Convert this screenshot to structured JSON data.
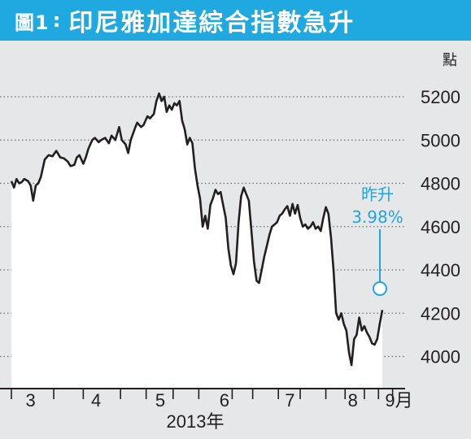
{
  "header": {
    "figure_label": "圖1",
    "colon": ":",
    "title": "印尼雅加達綜合指數急升"
  },
  "colors": {
    "header_bg": "#20a9e1",
    "plot_bg": "#e6e7e8",
    "area_fill": "#ffffff",
    "line": "#231f20",
    "annotation": "#1fa6de"
  },
  "chart_data": {
    "type": "line",
    "title": "印尼雅加達綜合指數急升",
    "ylabel": "點",
    "xlabel": "2013年",
    "ylim": [
      3920,
      5340
    ],
    "xlim": [
      0,
      33
    ],
    "y_ticks": [
      4000,
      4200,
      4400,
      4600,
      4800,
      5000,
      5200
    ],
    "x_tick_labels": [
      {
        "pos": 1.5,
        "label": "3"
      },
      {
        "pos": 6.6,
        "label": "4"
      },
      {
        "pos": 11.6,
        "label": "5"
      },
      {
        "pos": 16.6,
        "label": "6"
      },
      {
        "pos": 21.7,
        "label": "7"
      },
      {
        "pos": 26.6,
        "label": "8"
      },
      {
        "pos": 30.2,
        "label": "9月"
      }
    ],
    "x_minor_ticks": [
      0,
      3.3,
      5.6,
      8.5,
      10.5,
      12.6,
      14.6,
      17.2,
      18.8,
      20.8,
      22.5,
      24.5,
      26,
      27.5,
      28.6,
      29.7
    ],
    "year_label": "2013年",
    "grid": "horizontal-dotted",
    "series": [
      {
        "values": [
          [
            0.0,
            4810
          ],
          [
            0.2,
            4780
          ],
          [
            0.4,
            4820
          ],
          [
            0.6,
            4800
          ],
          [
            0.8,
            4805
          ],
          [
            1.0,
            4820
          ],
          [
            1.3,
            4810
          ],
          [
            1.5,
            4790
          ],
          [
            1.7,
            4720
          ],
          [
            1.9,
            4790
          ],
          [
            2.1,
            4800
          ],
          [
            2.3,
            4830
          ],
          [
            2.6,
            4910
          ],
          [
            2.9,
            4930
          ],
          [
            3.2,
            4925
          ],
          [
            3.5,
            4950
          ],
          [
            3.8,
            4920
          ],
          [
            4.1,
            4915
          ],
          [
            4.4,
            4900
          ],
          [
            4.6,
            4880
          ],
          [
            4.9,
            4885
          ],
          [
            5.1,
            4920
          ],
          [
            5.3,
            4930
          ],
          [
            5.6,
            4890
          ],
          [
            5.8,
            4920
          ],
          [
            6.0,
            4960
          ],
          [
            6.3,
            5000
          ],
          [
            6.5,
            5010
          ],
          [
            6.8,
            4990
          ],
          [
            7.0,
            5000
          ],
          [
            7.3,
            5010
          ],
          [
            7.6,
            4985
          ],
          [
            7.8,
            5020
          ],
          [
            8.1,
            5000
          ],
          [
            8.4,
            5060
          ],
          [
            8.6,
            5000
          ],
          [
            8.9,
            4980
          ],
          [
            9.1,
            4940
          ],
          [
            9.3,
            5000
          ],
          [
            9.6,
            5050
          ],
          [
            9.8,
            5080
          ],
          [
            10.1,
            5060
          ],
          [
            10.3,
            5070
          ],
          [
            10.6,
            5110
          ],
          [
            10.8,
            5100
          ],
          [
            11.1,
            5120
          ],
          [
            11.3,
            5180
          ],
          [
            11.5,
            5215
          ],
          [
            11.7,
            5180
          ],
          [
            11.9,
            5200
          ],
          [
            12.1,
            5130
          ],
          [
            12.3,
            5160
          ],
          [
            12.5,
            5140
          ],
          [
            12.7,
            5170
          ],
          [
            12.9,
            5160
          ],
          [
            13.1,
            5180
          ],
          [
            13.3,
            5090
          ],
          [
            13.5,
            5050
          ],
          [
            13.7,
            4980
          ],
          [
            13.9,
            5010
          ],
          [
            14.1,
            4985
          ],
          [
            14.3,
            4870
          ],
          [
            14.5,
            4790
          ],
          [
            14.7,
            4730
          ],
          [
            14.9,
            4600
          ],
          [
            15.1,
            4650
          ],
          [
            15.3,
            4590
          ],
          [
            15.5,
            4700
          ],
          [
            15.7,
            4730
          ],
          [
            15.9,
            4770
          ],
          [
            16.1,
            4750
          ],
          [
            16.3,
            4760
          ],
          [
            16.5,
            4700
          ],
          [
            16.7,
            4640
          ],
          [
            16.9,
            4500
          ],
          [
            17.1,
            4420
          ],
          [
            17.3,
            4380
          ],
          [
            17.5,
            4430
          ],
          [
            17.7,
            4620
          ],
          [
            17.9,
            4740
          ],
          [
            18.1,
            4780
          ],
          [
            18.3,
            4750
          ],
          [
            18.5,
            4720
          ],
          [
            18.7,
            4580
          ],
          [
            18.9,
            4440
          ],
          [
            19.1,
            4350
          ],
          [
            19.3,
            4340
          ],
          [
            19.5,
            4400
          ],
          [
            19.7,
            4460
          ],
          [
            19.9,
            4510
          ],
          [
            20.1,
            4560
          ],
          [
            20.3,
            4600
          ],
          [
            20.5,
            4610
          ],
          [
            20.7,
            4620
          ],
          [
            20.9,
            4650
          ],
          [
            21.1,
            4660
          ],
          [
            21.3,
            4680
          ],
          [
            21.5,
            4695
          ],
          [
            21.7,
            4650
          ],
          [
            21.9,
            4705
          ],
          [
            22.1,
            4660
          ],
          [
            22.3,
            4700
          ],
          [
            22.5,
            4640
          ],
          [
            22.7,
            4600
          ],
          [
            22.9,
            4610
          ],
          [
            23.1,
            4590
          ],
          [
            23.3,
            4600
          ],
          [
            23.5,
            4620
          ],
          [
            23.7,
            4590
          ],
          [
            23.9,
            4600
          ],
          [
            24.1,
            4580
          ],
          [
            24.3,
            4640
          ],
          [
            24.5,
            4690
          ],
          [
            24.7,
            4660
          ],
          [
            24.9,
            4550
          ],
          [
            25.1,
            4400
          ],
          [
            25.3,
            4200
          ],
          [
            25.5,
            4170
          ],
          [
            25.7,
            4200
          ],
          [
            25.9,
            4150
          ],
          [
            26.1,
            4120
          ],
          [
            26.3,
            4020
          ],
          [
            26.5,
            3960
          ],
          [
            26.7,
            4080
          ],
          [
            26.9,
            4100
          ],
          [
            27.1,
            4180
          ],
          [
            27.3,
            4120
          ],
          [
            27.5,
            4140
          ],
          [
            27.7,
            4110
          ],
          [
            27.9,
            4090
          ],
          [
            28.1,
            4060
          ],
          [
            28.3,
            4055
          ],
          [
            28.5,
            4080
          ],
          [
            28.7,
            4150
          ],
          [
            28.9,
            4215
          ]
        ]
      }
    ],
    "annotation": {
      "label_line1": "昨升",
      "label_line2": "3.98%",
      "point": [
        28.9,
        4215
      ]
    }
  }
}
